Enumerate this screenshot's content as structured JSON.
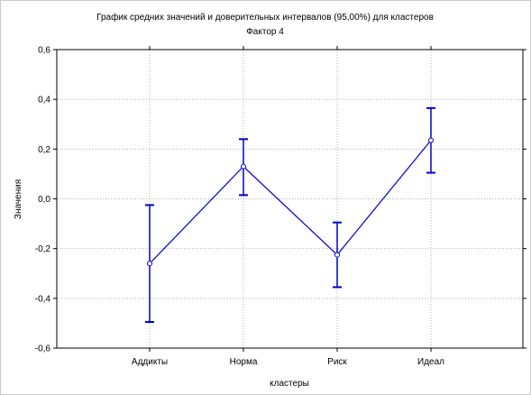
{
  "chart_data": {
    "type": "line",
    "title": "График средних значений и доверительных интервалов (95,00%) для кластеров",
    "subtitle": "Фактор 4",
    "xlabel": "кластеры",
    "ylabel": "Значения",
    "categories": [
      "Аддикты",
      "Норма",
      "Риск",
      "Идеал"
    ],
    "series": [
      {
        "values": [
          -0.26,
          0.13,
          -0.225,
          0.235
        ],
        "lower": [
          -0.495,
          0.015,
          -0.355,
          0.105
        ],
        "upper": [
          -0.025,
          0.24,
          -0.095,
          0.365
        ]
      }
    ],
    "ylim": [
      -0.6,
      0.6
    ],
    "yticks": [
      "-0,6",
      "-0,4",
      "-0,2",
      "0,0",
      "0,2",
      "0,4",
      "0,6"
    ],
    "grid": true,
    "colors": {
      "series": "#0000cc",
      "grid": "#b0b0b0"
    }
  }
}
